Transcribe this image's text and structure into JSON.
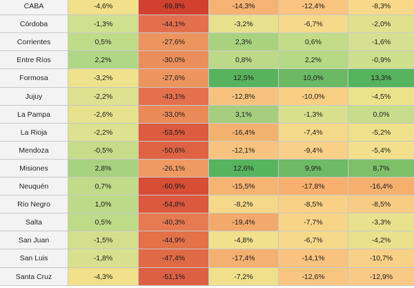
{
  "chart_data": {
    "type": "heatmap",
    "rows": [
      "CABA",
      "Córdoba",
      "Corrientes",
      "Entre Ríos",
      "Formosa",
      "Jujuy",
      "La Pampa",
      "La Rioja",
      "Mendoza",
      "Misiones",
      "Neuquén",
      "Río Negro",
      "Salta",
      "San Juan",
      "San Luis",
      "Santa Cruz"
    ],
    "values": [
      [
        -4.6,
        -69.8,
        -14.3,
        -12.4,
        -8.3
      ],
      [
        -1.3,
        -44.1,
        -3.2,
        -6.7,
        -2.0
      ],
      [
        0.5,
        -27.6,
        2.3,
        0.6,
        -1.6
      ],
      [
        2.2,
        -30.0,
        0.8,
        2.2,
        -0.9
      ],
      [
        -3.2,
        -27.6,
        12.5,
        10.0,
        13.3
      ],
      [
        -2.2,
        -43.1,
        -12.8,
        -10.0,
        -4.5
      ],
      [
        -2.6,
        -33.0,
        3.1,
        -1.3,
        0.0
      ],
      [
        -2.2,
        -53.5,
        -16.4,
        -7.4,
        -5.2
      ],
      [
        -0.5,
        -50.6,
        -12.1,
        -9.4,
        -5.4
      ],
      [
        2.8,
        -26.1,
        12.6,
        9.9,
        8.7
      ],
      [
        0.7,
        -60.9,
        -15.5,
        -17.8,
        -16.4
      ],
      [
        1.0,
        -54.8,
        -8.2,
        -8.5,
        -8.5
      ],
      [
        0.5,
        -40.3,
        -19.4,
        -7.7,
        -3.3
      ],
      [
        -1.5,
        -44.9,
        -4.8,
        -6.7,
        -4.2
      ],
      [
        -1.8,
        -47.4,
        -17.4,
        -14.1,
        -10.7
      ],
      [
        -4.3,
        -51.1,
        -7.2,
        -12.6,
        -12.9
      ]
    ],
    "display": [
      [
        "-4,6%",
        "-69,8%",
        "-14,3%",
        "-12,4%",
        "-8,3%"
      ],
      [
        "-1,3%",
        "-44,1%",
        "-3,2%",
        "-6,7%",
        "-2,0%"
      ],
      [
        "0,5%",
        "-27,6%",
        "2,3%",
        "0,6%",
        "-1,6%"
      ],
      [
        "2,2%",
        "-30,0%",
        "0,8%",
        "2,2%",
        "-0,9%"
      ],
      [
        "-3,2%",
        "-27,6%",
        "12,5%",
        "10,0%",
        "13,3%"
      ],
      [
        "-2,2%",
        "-43,1%",
        "-12,8%",
        "-10,0%",
        "-4,5%"
      ],
      [
        "-2,6%",
        "-33,0%",
        "3,1%",
        "-1,3%",
        "0,0%"
      ],
      [
        "-2,2%",
        "-53,5%",
        "-16,4%",
        "-7,4%",
        "-5,2%"
      ],
      [
        "-0,5%",
        "-50,6%",
        "-12,1%",
        "-9,4%",
        "-5,4%"
      ],
      [
        "2,8%",
        "-26,1%",
        "12,6%",
        "9,9%",
        "8,7%"
      ],
      [
        "0,7%",
        "-60,9%",
        "-15,5%",
        "-17,8%",
        "-16,4%"
      ],
      [
        "1,0%",
        "-54,8%",
        "-8,2%",
        "-8,5%",
        "-8,5%"
      ],
      [
        "0,5%",
        "-40,3%",
        "-19,4%",
        "-7,7%",
        "-3,3%"
      ],
      [
        "-1,5%",
        "-44,9%",
        "-4,8%",
        "-6,7%",
        "-4,2%"
      ],
      [
        "-1,8%",
        "-47,4%",
        "-17,4%",
        "-14,1%",
        "-10,7%"
      ],
      [
        "-4,3%",
        "-51,1%",
        "-7,2%",
        "-12,6%",
        "-12,9%"
      ]
    ],
    "colors": [
      [
        "#f2e08a",
        "#d2412f",
        "#f6b373",
        "#f9c47f",
        "#f8d98a"
      ],
      [
        "#cfe08f",
        "#e3704d",
        "#e8e28e",
        "#f6d98a",
        "#dfe18f"
      ],
      [
        "#bfdc89",
        "#ec955f",
        "#a9d27f",
        "#c2dc88",
        "#d7e090"
      ],
      [
        "#b0d785",
        "#ea8e5b",
        "#bcd987",
        "#b6d985",
        "#cddf8c"
      ],
      [
        "#efe28c",
        "#ec955f",
        "#58b35e",
        "#6bb965",
        "#55b25d"
      ],
      [
        "#dee18f",
        "#e4704d",
        "#f7c27e",
        "#f9cf84",
        "#ede28c"
      ],
      [
        "#e6e28d",
        "#ea8a59",
        "#a5cf7e",
        "#d8e08e",
        "#c7dd8c"
      ],
      [
        "#dee18f",
        "#dd5b3f",
        "#f4b270",
        "#f5d98a",
        "#f0e08c"
      ],
      [
        "#c6dc89",
        "#df6343",
        "#f7c47f",
        "#f8d087",
        "#f2e08c"
      ],
      [
        "#a8d27f",
        "#ee9a62",
        "#56b35e",
        "#6fba66",
        "#7ebf6a"
      ],
      [
        "#c0dc88",
        "#d74d35",
        "#f6b473",
        "#f7b06d",
        "#f5b06e"
      ],
      [
        "#bcda88",
        "#dc583e",
        "#f5d889",
        "#f9d186",
        "#f8cc84"
      ],
      [
        "#bedb88",
        "#e67b52",
        "#f3a96b",
        "#f8d487",
        "#e8e28e"
      ],
      [
        "#d4df8e",
        "#e37249",
        "#f1e08c",
        "#f6d98a",
        "#ebe18d"
      ],
      [
        "#d8e08e",
        "#e06a46",
        "#f4b070",
        "#f9c27e",
        "#f9d087"
      ],
      [
        "#f2e08a",
        "#dd6044",
        "#f0df8b",
        "#f9c682",
        "#f9c986"
      ]
    ],
    "label_color": "#f3f3f3"
  }
}
